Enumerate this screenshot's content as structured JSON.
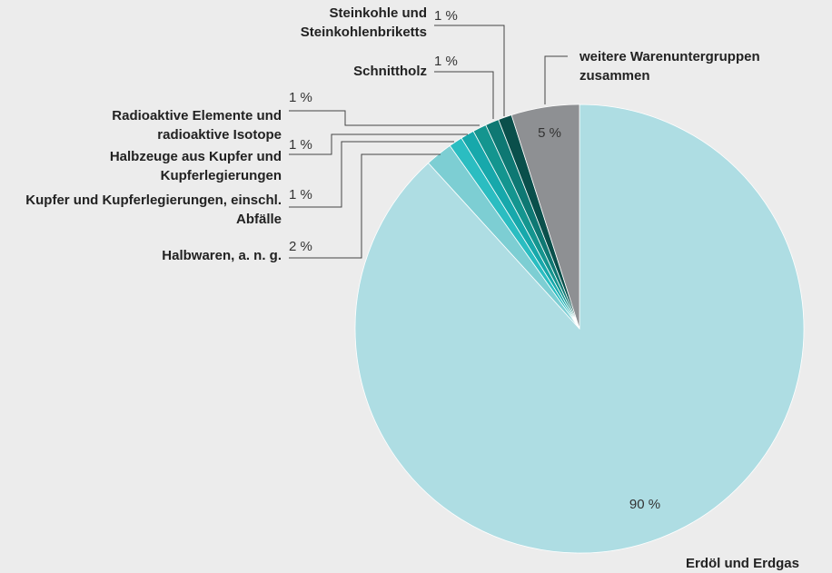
{
  "chart_data": {
    "type": "pie",
    "categories": [
      "Erdöl und Erdgas",
      "Halbwaren, a. n. g.",
      "Kupfer und Kupferlegierungen, einschl. Abfälle",
      "Halbzeuge aus Kupfer und Kupferlegierungen",
      "Radioaktive Elemente und radioaktive Isotope",
      "Schnittholz",
      "Steinkohle und Steinkohlenbriketts",
      "weitere Warenuntergruppen zusammen"
    ],
    "values": [
      90,
      2,
      1,
      1,
      1,
      1,
      1,
      5
    ],
    "value_labels": [
      "90 %",
      "2 %",
      "1 %",
      "1 %",
      "1 %",
      "1 %",
      "1 %",
      "5 %"
    ],
    "colors": [
      "#aedde3",
      "#7dced3",
      "#2bbdc1",
      "#17a8ab",
      "#14958f",
      "#0e7873",
      "#0a4f4b",
      "#8e9093"
    ]
  }
}
